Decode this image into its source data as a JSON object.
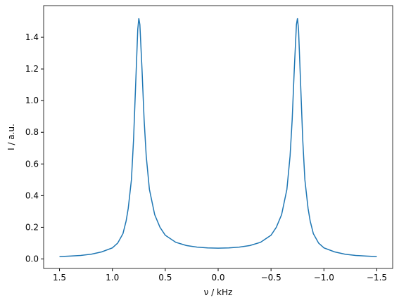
{
  "chart_data": {
    "type": "line",
    "xlabel": "ν / kHz",
    "ylabel": "I / a.u.",
    "x": [
      1.5,
      1.4,
      1.3,
      1.2,
      1.1,
      1.0,
      0.95,
      0.9,
      0.87,
      0.85,
      0.82,
      0.8,
      0.78,
      0.76,
      0.75,
      0.74,
      0.72,
      0.7,
      0.68,
      0.65,
      0.6,
      0.55,
      0.5,
      0.4,
      0.3,
      0.2,
      0.1,
      0.0,
      -0.1,
      -0.2,
      -0.3,
      -0.4,
      -0.5,
      -0.55,
      -0.6,
      -0.65,
      -0.68,
      -0.7,
      -0.72,
      -0.74,
      -0.75,
      -0.76,
      -0.78,
      -0.8,
      -0.82,
      -0.85,
      -0.87,
      -0.9,
      -0.95,
      -1.0,
      -1.1,
      -1.2,
      -1.3,
      -1.4,
      -1.5
    ],
    "series": [
      {
        "color": "#1f77b4",
        "values": [
          0.015,
          0.018,
          0.022,
          0.03,
          0.045,
          0.07,
          0.1,
          0.16,
          0.24,
          0.32,
          0.5,
          0.75,
          1.1,
          1.45,
          1.52,
          1.48,
          1.2,
          0.88,
          0.65,
          0.44,
          0.28,
          0.2,
          0.15,
          0.105,
          0.085,
          0.075,
          0.07,
          0.068,
          0.07,
          0.075,
          0.085,
          0.105,
          0.15,
          0.2,
          0.28,
          0.44,
          0.65,
          0.88,
          1.2,
          1.48,
          1.52,
          1.45,
          1.1,
          0.75,
          0.5,
          0.32,
          0.24,
          0.16,
          0.1,
          0.07,
          0.045,
          0.03,
          0.022,
          0.018,
          0.015
        ]
      }
    ],
    "xlim": [
      1.65,
      -1.65
    ],
    "ylim": [
      -0.06,
      1.6
    ],
    "xticks": [
      {
        "value": 1.5,
        "label": "1.5"
      },
      {
        "value": 1.0,
        "label": "1.0"
      },
      {
        "value": 0.5,
        "label": "0.5"
      },
      {
        "value": 0.0,
        "label": "0.0"
      },
      {
        "value": -0.5,
        "label": "−0.5"
      },
      {
        "value": -1.0,
        "label": "−1.0"
      },
      {
        "value": -1.5,
        "label": "−1.5"
      }
    ],
    "yticks": [
      {
        "value": 0.0,
        "label": "0.0"
      },
      {
        "value": 0.2,
        "label": "0.2"
      },
      {
        "value": 0.4,
        "label": "0.4"
      },
      {
        "value": 0.6,
        "label": "0.6"
      },
      {
        "value": 0.8,
        "label": "0.8"
      },
      {
        "value": 1.0,
        "label": "1.0"
      },
      {
        "value": 1.2,
        "label": "1.2"
      },
      {
        "value": 1.4,
        "label": "1.4"
      }
    ]
  }
}
